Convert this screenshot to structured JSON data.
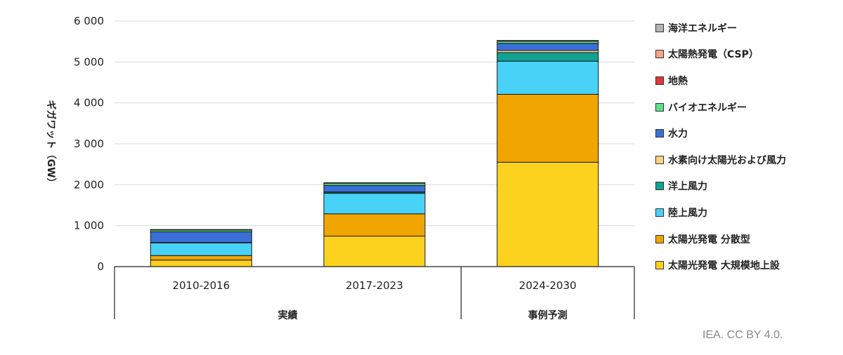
{
  "chart_data": {
    "type": "bar",
    "stacked": true,
    "ylabel": "ギガワット（GW）",
    "ylim": [
      0,
      6000
    ],
    "yticks": [
      0,
      1000,
      2000,
      3000,
      4000,
      5000,
      6000
    ],
    "ytick_labels": [
      "0",
      "1 000",
      "2 000",
      "3 000",
      "4 000",
      "5 000",
      "6 000"
    ],
    "grid": true,
    "legend_position": "right",
    "categories": [
      "2010-2016",
      "2017-2023",
      "2024-2030"
    ],
    "groups": [
      {
        "label": "実績",
        "categories": [
          "2010-2016",
          "2017-2023"
        ]
      },
      {
        "label": "事例予測",
        "categories": [
          "2024-2030"
        ]
      }
    ],
    "series": [
      {
        "name": "太陽光発電 大規模地上設",
        "color": "#FCD21E",
        "values": [
          160,
          745,
          2550
        ]
      },
      {
        "name": "太陽光発電 分散型",
        "color": "#F0A500",
        "values": [
          110,
          545,
          1660
        ]
      },
      {
        "name": "陸上風力",
        "color": "#49D2F8",
        "values": [
          310,
          500,
          810
        ]
      },
      {
        "name": "洋上風力",
        "color": "#0FA391",
        "values": [
          10,
          30,
          210
        ]
      },
      {
        "name": "水素向け太陽光および風力",
        "color": "#FFD384",
        "values": [
          0,
          5,
          50
        ]
      },
      {
        "name": "水力",
        "color": "#3A6FD8",
        "values": [
          260,
          160,
          175
        ]
      },
      {
        "name": "バイオエネルギー",
        "color": "#60E08A",
        "values": [
          45,
          55,
          55
        ]
      },
      {
        "name": "地熱",
        "color": "#E0373A",
        "values": [
          5,
          5,
          5
        ]
      },
      {
        "name": "太陽熱発電（CSP）",
        "color": "#F4A38A",
        "values": [
          3,
          3,
          5
        ]
      },
      {
        "name": "海洋エネルギー",
        "color": "#B4B4B4",
        "values": [
          2,
          2,
          5
        ]
      }
    ]
  },
  "credit": "IEA. CC BY 4.0."
}
